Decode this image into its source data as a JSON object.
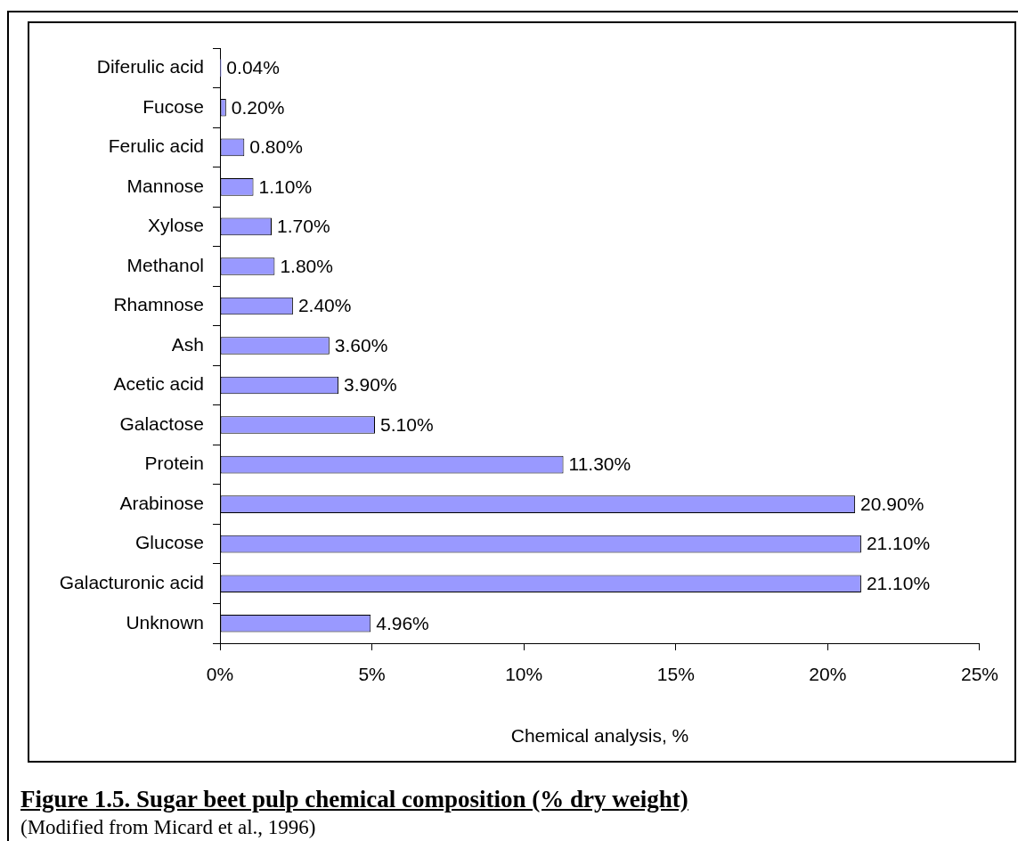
{
  "chart_data": {
    "type": "bar",
    "orientation": "horizontal",
    "title": "Figure 1.5. Sugar beet pulp chemical composition (% dry weight)",
    "xlabel": "Chemical analysis, %",
    "categories": [
      "Diferulic acid",
      "Fucose",
      "Ferulic acid",
      "Mannose",
      "Xylose",
      "Methanol",
      "Rhamnose",
      "Ash",
      "Acetic acid",
      "Galactose",
      "Protein",
      "Arabinose",
      "Glucose",
      "Galacturonic acid",
      "Unknown"
    ],
    "values": [
      0.04,
      0.2,
      0.8,
      1.1,
      1.7,
      1.8,
      2.4,
      3.6,
      3.9,
      5.1,
      11.3,
      20.9,
      21.1,
      21.1,
      4.96
    ],
    "value_labels": [
      "0.04%",
      "0.20%",
      "0.80%",
      "1.10%",
      "1.70%",
      "1.80%",
      "2.40%",
      "3.60%",
      "3.90%",
      "5.10%",
      "11.30%",
      "20.90%",
      "21.10%",
      "21.10%",
      "4.96%"
    ],
    "color": "#9999ff",
    "xlim": [
      0,
      25
    ],
    "xticks": [
      {
        "value": 0,
        "label": "0%"
      },
      {
        "value": 5,
        "label": "5%"
      },
      {
        "value": 10,
        "label": "10%"
      },
      {
        "value": 15,
        "label": "15%"
      },
      {
        "value": 20,
        "label": "20%"
      },
      {
        "value": 25,
        "label": "25%"
      }
    ],
    "grid": false,
    "legend": false,
    "annotations": [
      "(Modified from Micard et al., 1996)"
    ]
  }
}
